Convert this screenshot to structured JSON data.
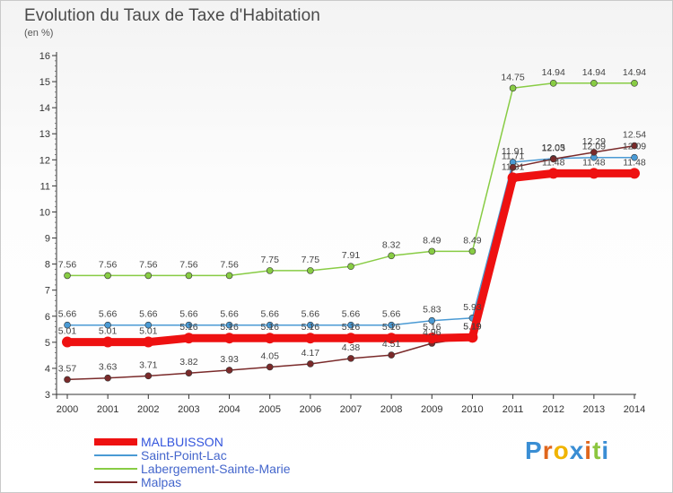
{
  "title": "Evolution du Taux de Taxe d'Habitation",
  "subtitle": "(en %)",
  "brand": {
    "text": "Proxiti",
    "letter_colors": [
      "#3a8ed4",
      "#e0661c",
      "#f0b400",
      "#3a8ed4",
      "#e0661c",
      "#8cc63f",
      "#3a8ed4"
    ]
  },
  "chart_data": {
    "type": "line",
    "title": "Evolution du Taux de Taxe d'Habitation",
    "subtitle": "(en %)",
    "xlabel": "",
    "ylabel": "",
    "x": [
      "2000",
      "2001",
      "2002",
      "2003",
      "2004",
      "2005",
      "2006",
      "2007",
      "2008",
      "2009",
      "2010",
      "2011",
      "2012",
      "2013",
      "2014"
    ],
    "ylim": [
      3,
      16
    ],
    "yticks": [
      "3",
      "4",
      "5",
      "6",
      "7",
      "8",
      "9",
      "10",
      "11",
      "12",
      "13",
      "14",
      "15",
      "16"
    ],
    "grid": false,
    "legend_position": "bottom-left",
    "series": [
      {
        "name": "MALBUISSON",
        "color": "#ee1111",
        "emphasis": true,
        "values": [
          5.01,
          5.01,
          5.01,
          5.16,
          5.16,
          5.16,
          5.16,
          5.16,
          5.16,
          5.16,
          5.19,
          11.31,
          11.48,
          11.48,
          11.48
        ],
        "labels": [
          "5.01",
          "5.01",
          "5.01",
          "5.16",
          "5.16",
          "5.16",
          "5.16",
          "5.16",
          "5.16",
          "5.16",
          "5.19",
          "11.31",
          "11.48",
          "11.48",
          "11.48"
        ]
      },
      {
        "name": "Saint-Point-Lac",
        "color": "#4a9ad4",
        "emphasis": false,
        "values": [
          5.66,
          5.66,
          5.66,
          5.66,
          5.66,
          5.66,
          5.66,
          5.66,
          5.66,
          5.83,
          5.93,
          11.91,
          12.05,
          12.09,
          12.09
        ],
        "labels": [
          "5.66",
          "5.66",
          "5.66",
          "5.66",
          "5.66",
          "5.66",
          "5.66",
          "5.66",
          "5.66",
          "5.83",
          "5.93",
          "11.91",
          "12.05",
          "12.09",
          "12.09"
        ]
      },
      {
        "name": "Labergement-Sainte-Marie",
        "color": "#88cc44",
        "emphasis": false,
        "values": [
          7.56,
          7.56,
          7.56,
          7.56,
          7.56,
          7.75,
          7.75,
          7.91,
          8.32,
          8.49,
          8.49,
          14.75,
          14.94,
          14.94,
          14.94
        ],
        "labels": [
          "7.56",
          "7.56",
          "7.56",
          "7.56",
          "7.56",
          "7.75",
          "7.75",
          "7.91",
          "8.32",
          "8.49",
          "8.49",
          "14.75",
          "14.94",
          "14.94",
          "14.94"
        ]
      },
      {
        "name": "Malpas",
        "color": "#7a2a2a",
        "emphasis": false,
        "values": [
          3.57,
          3.63,
          3.71,
          3.82,
          3.93,
          4.05,
          4.17,
          4.38,
          4.51,
          4.96,
          5.19,
          11.71,
          12.03,
          12.29,
          12.54
        ],
        "labels": [
          "3.57",
          "3.63",
          "3.71",
          "3.82",
          "3.93",
          "4.05",
          "4.17",
          "4.38",
          "4.51",
          "4.96",
          "5.19",
          "11.71",
          "12.03",
          "12.29",
          "12.54"
        ]
      }
    ]
  }
}
